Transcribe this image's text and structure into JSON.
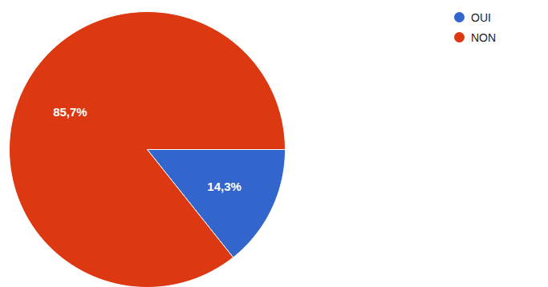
{
  "chart_data": {
    "type": "pie",
    "categories": [
      "OUI",
      "NON"
    ],
    "values": [
      14.3,
      85.7
    ],
    "value_labels": [
      "14,3%",
      "85,7%"
    ],
    "colors": [
      "#3366cc",
      "#dc3912"
    ],
    "data_labels": true,
    "legend": "top-right"
  }
}
